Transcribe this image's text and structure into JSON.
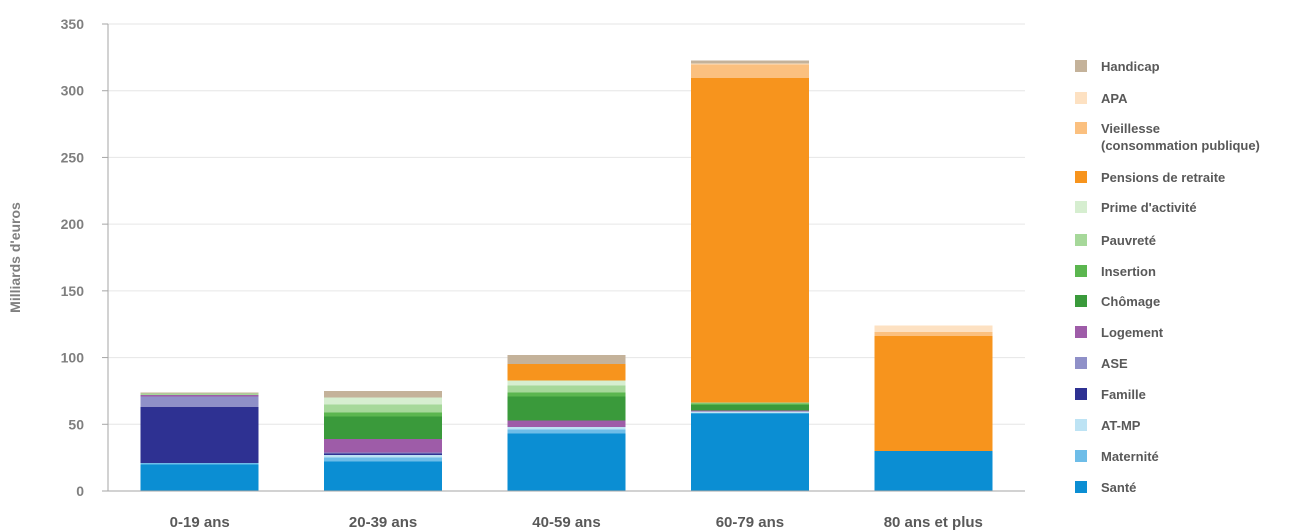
{
  "chart_data": {
    "type": "bar",
    "stacked": true,
    "title": "",
    "xlabel": "",
    "ylabel": "Milliards d'euros",
    "ylim": [
      0,
      350
    ],
    "yticks": [
      0,
      50,
      100,
      150,
      200,
      250,
      300,
      350
    ],
    "grid": true,
    "legend_position": "right",
    "categories": [
      "0-19 ans",
      "20-39 ans",
      "40-59 ans",
      "60-79 ans",
      "80 ans et plus"
    ],
    "series": [
      {
        "name": "Santé",
        "color": "#0b8ed3",
        "values": [
          20,
          22,
          43,
          58,
          30
        ]
      },
      {
        "name": "Maternité",
        "color": "#6ebde8",
        "values": [
          1,
          3,
          3,
          0.5,
          0
        ]
      },
      {
        "name": "AT-MP",
        "color": "#bde3f4",
        "values": [
          0,
          2,
          2,
          1,
          0
        ]
      },
      {
        "name": "Famille",
        "color": "#2e3192",
        "values": [
          42,
          1,
          0,
          0,
          0
        ]
      },
      {
        "name": "ASE",
        "color": "#8f90c8",
        "values": [
          8,
          1,
          0,
          0,
          0
        ]
      },
      {
        "name": "Logement",
        "color": "#9e5ca8",
        "values": [
          1,
          10,
          5,
          1,
          0
        ]
      },
      {
        "name": "Chômage",
        "color": "#3a9a3b",
        "values": [
          0,
          17,
          18,
          4,
          0
        ]
      },
      {
        "name": "Insertion",
        "color": "#5bb64f",
        "values": [
          0,
          3,
          3,
          1,
          0
        ]
      },
      {
        "name": "Pauvreté",
        "color": "#a6d89a",
        "values": [
          1,
          6,
          5,
          1,
          0
        ]
      },
      {
        "name": "Prime d'activité",
        "color": "#d6eed0",
        "values": [
          0,
          5,
          4,
          0,
          0
        ]
      },
      {
        "name": "Pensions de retraite",
        "color": "#f7941d",
        "values": [
          0,
          0,
          12,
          243,
          86
        ]
      },
      {
        "name": "Vieillesse\n(consommation publique)",
        "color": "#fbc07f",
        "values": [
          0,
          0,
          0,
          10,
          3
        ]
      },
      {
        "name": "APA",
        "color": "#fde1c2",
        "values": [
          0,
          0,
          0,
          1,
          5
        ]
      },
      {
        "name": "Handicap",
        "color": "#c4b29a",
        "values": [
          1,
          5,
          7,
          2,
          0
        ]
      }
    ]
  }
}
